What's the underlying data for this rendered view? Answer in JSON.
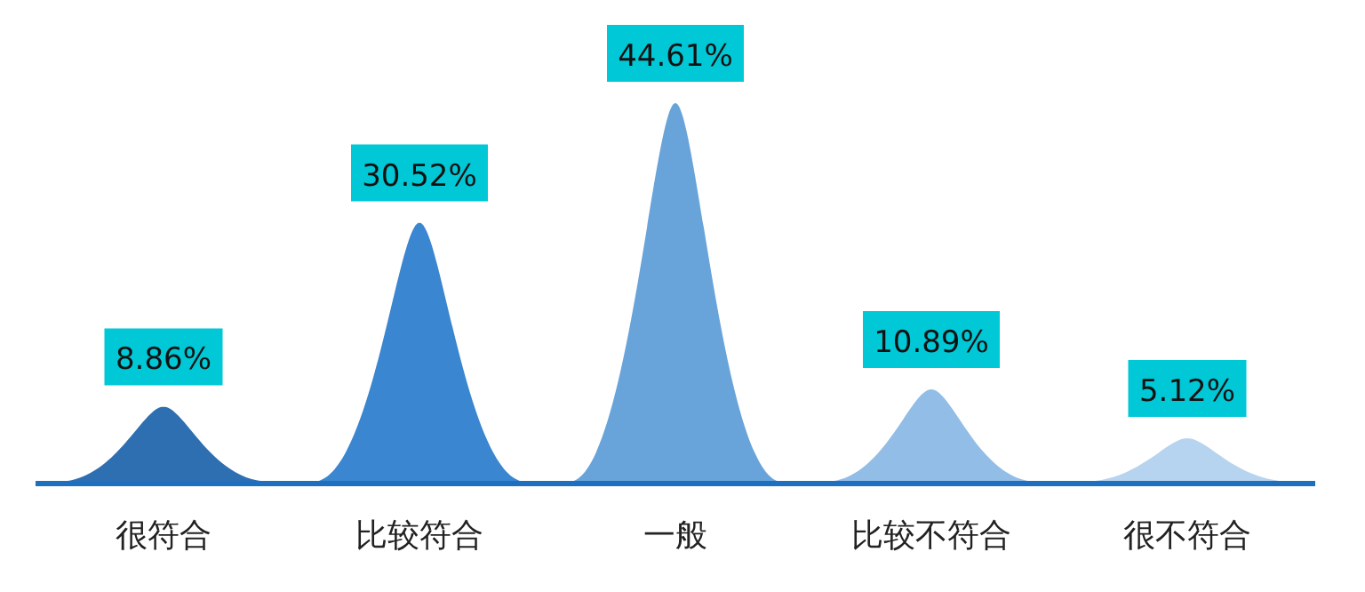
{
  "chart_data": {
    "type": "bar",
    "categories": [
      "很符合",
      "比较符合",
      "一般",
      "比较不符合",
      "很不符合"
    ],
    "values": [
      8.86,
      30.52,
      44.61,
      10.89,
      5.12
    ],
    "colors": [
      "#2e6fb2",
      "#3a86d0",
      "#68a4da",
      "#92bde6",
      "#b6d3ef"
    ],
    "value_labels": [
      "8.86%",
      "30.52%",
      "44.61%",
      "10.89%",
      "5.12%"
    ]
  }
}
